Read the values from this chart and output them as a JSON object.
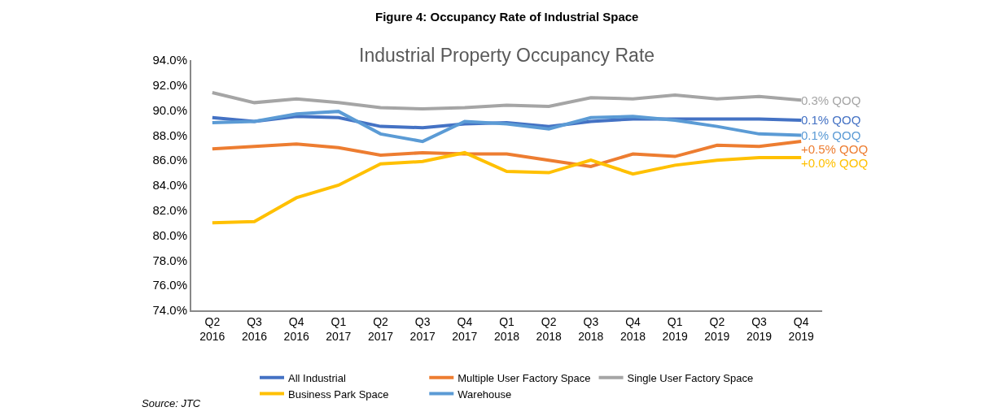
{
  "chart_data": {
    "type": "line",
    "title": "Figure 4: Occupancy Rate of Industrial Space",
    "subtitle": "Industrial Property Occupancy Rate",
    "categories": [
      "Q2 2016",
      "Q3 2016",
      "Q4 2016",
      "Q1 2017",
      "Q2 2017",
      "Q3 2017",
      "Q4 2017",
      "Q1 2018",
      "Q2 2018",
      "Q3 2018",
      "Q4 2018",
      "Q1 2019",
      "Q2 2019",
      "Q3 2019",
      "Q4 2019"
    ],
    "series": [
      {
        "name": "All Industrial",
        "color": "#4472c4",
        "values": [
          89.4,
          89.1,
          89.5,
          89.4,
          88.7,
          88.6,
          88.9,
          89.0,
          88.7,
          89.1,
          89.3,
          89.3,
          89.3,
          89.3,
          89.2
        ]
      },
      {
        "name": "Multiple User Factory Space",
        "color": "#ed7d31",
        "values": [
          86.9,
          87.1,
          87.3,
          87.0,
          86.4,
          86.6,
          86.5,
          86.5,
          86.0,
          85.5,
          86.5,
          86.3,
          87.2,
          87.1,
          87.5
        ]
      },
      {
        "name": "Single User Factory Space",
        "color": "#a5a5a5",
        "values": [
          91.4,
          90.6,
          90.9,
          90.6,
          90.2,
          90.1,
          90.2,
          90.4,
          90.3,
          91.0,
          90.9,
          91.2,
          90.9,
          91.1,
          90.8
        ]
      },
      {
        "name": "Business Park Space",
        "color": "#ffc000",
        "values": [
          81.0,
          81.1,
          83.0,
          84.0,
          85.7,
          85.9,
          86.6,
          85.1,
          85.0,
          86.0,
          84.9,
          85.6,
          86.0,
          86.2,
          86.2
        ]
      },
      {
        "name": "Warehouse",
        "color": "#5b9bd5",
        "values": [
          89.0,
          89.1,
          89.7,
          89.9,
          88.1,
          87.5,
          89.1,
          88.9,
          88.5,
          89.4,
          89.5,
          89.2,
          88.7,
          88.1,
          88.0
        ]
      }
    ],
    "ylim": [
      74,
      94
    ],
    "yticks": [
      {
        "value": 74,
        "label": "74.0%"
      },
      {
        "value": 76,
        "label": "76.0%"
      },
      {
        "value": 78,
        "label": "78.0%"
      },
      {
        "value": 80,
        "label": "80.0%"
      },
      {
        "value": 82,
        "label": "82.0%"
      },
      {
        "value": 84,
        "label": "84.0%"
      },
      {
        "value": 86,
        "label": "86.0%"
      },
      {
        "value": 88,
        "label": "88.0%"
      },
      {
        "value": 90,
        "label": "90.0%"
      },
      {
        "value": 92,
        "label": "92.0%"
      },
      {
        "value": 94,
        "label": "94.0%"
      }
    ],
    "grid": false,
    "legend": "bottom",
    "marker": "none",
    "line_style": "solid",
    "annotations": [
      {
        "text": "0.3% QOQ",
        "x": "Q4 2019",
        "y": 90.8
      },
      {
        "text": "0.1% QOQ",
        "x": "Q4 2019",
        "y": 89.2
      },
      {
        "text": "0.1% QOQ",
        "x": "Q4 2019",
        "y": 88.0
      },
      {
        "text": "+0.5% QOQ",
        "x": "Q4 2019",
        "y": 87.5
      },
      {
        "text": "+0.0% QOQ",
        "x": "Q4 2019",
        "y": 86.2
      },
      "Source: JTC"
    ]
  }
}
